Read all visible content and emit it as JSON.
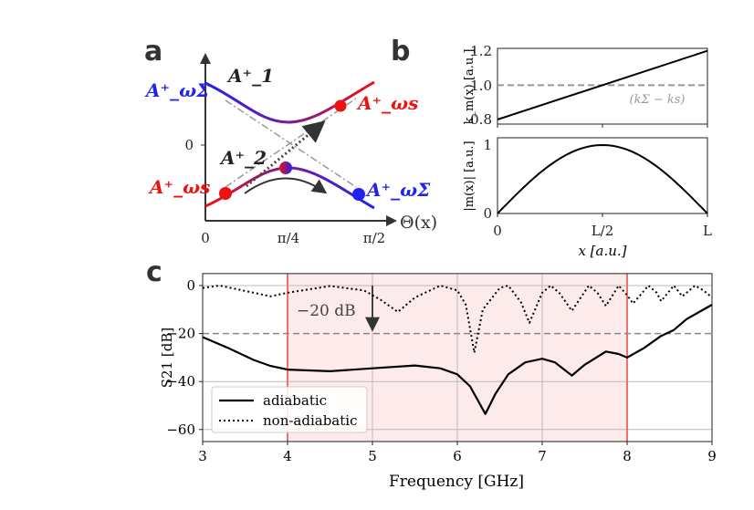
{
  "panel_labels": {
    "a": "a",
    "b": "b",
    "c": "c"
  },
  "chart_data": [
    {
      "type": "diagram-line",
      "panel": "a",
      "xlabel": "Θ(x)",
      "xticks": [
        "0",
        "π/4",
        "π/2"
      ],
      "yticks": [
        "0"
      ],
      "labels": {
        "upper_left": "A⁺_ωΣ",
        "upper_right": "A⁺_ωs",
        "lower_left": "A⁺_ωs",
        "lower_right": "A⁺_ωΣ",
        "branch1": "A⁺_1",
        "branch2": "A⁺_2"
      },
      "colors": {
        "red": "#ee1111",
        "blue": "#2222ee",
        "gray": "#999999",
        "arrow": "#333333"
      }
    },
    {
      "type": "line",
      "panel": "b-top",
      "ylabel": "k_m(x) [a.u.]",
      "yticks": [
        "0.8",
        "1.0",
        "1.2"
      ],
      "ylim": [
        0.79,
        1.21
      ],
      "series": [
        {
          "x": [
            0,
            1
          ],
          "values": [
            0.8,
            1.2
          ]
        }
      ],
      "reference": {
        "value": 1.0,
        "label": "(kΣ − ks)"
      }
    },
    {
      "type": "line",
      "panel": "b-bottom",
      "ylabel": "|m(x)| [a.u.]",
      "xlabel": "x  [a.u.]",
      "yticks": [
        "0",
        "1"
      ],
      "xticks": [
        "0",
        "L/2",
        "L"
      ],
      "ylim": [
        0,
        1.1
      ],
      "series": [
        {
          "shape": "sin(πx/L)",
          "peak": 1
        }
      ]
    },
    {
      "type": "line",
      "panel": "c",
      "xlabel": "Frequency [GHz]",
      "ylabel": "S21 [dB]",
      "xlim": [
        3,
        9
      ],
      "ylim": [
        -65,
        5
      ],
      "xticks": [
        "3",
        "4",
        "5",
        "6",
        "7",
        "8",
        "9"
      ],
      "yticks": [
        "0",
        "-20",
        "-40",
        "-60"
      ],
      "grid": true,
      "band": [
        4,
        8
      ],
      "band_color": "#fdeaea",
      "band_edge_color": "#f07070",
      "threshold": -20,
      "annotation": "−20 dB",
      "legend": "lower-left",
      "series": [
        {
          "name": "adiabatic",
          "style": "solid",
          "x": [
            3,
            3.3,
            3.6,
            3.8,
            4,
            4.5,
            5,
            5.5,
            5.8,
            6,
            6.15,
            6.33,
            6.45,
            6.6,
            6.8,
            7,
            7.15,
            7.35,
            7.5,
            7.75,
            7.9,
            8,
            8.2,
            8.4,
            8.55,
            8.7,
            9
          ],
          "values": [
            -21.5,
            -26,
            -31,
            -33.5,
            -35,
            -35.7,
            -34.5,
            -33.3,
            -34.5,
            -37,
            -42,
            -53.5,
            -45,
            -37,
            -32,
            -30.5,
            -32,
            -37.5,
            -33,
            -27.5,
            -28.5,
            -30,
            -26,
            -21,
            -18.5,
            -14,
            -8
          ]
        },
        {
          "name": "non-adiabatic",
          "style": "dotted",
          "x": [
            3,
            3.2,
            3.4,
            3.8,
            4,
            4.5,
            4.9,
            5.1,
            5.3,
            5.5,
            5.8,
            6,
            6.1,
            6.2,
            6.3,
            6.5,
            6.6,
            6.75,
            6.85,
            7,
            7.1,
            7.2,
            7.35,
            7.55,
            7.65,
            7.75,
            7.9,
            8,
            8.07,
            8.25,
            8.35,
            8.4,
            8.55,
            8.65,
            8.8,
            8.9,
            9
          ],
          "values": [
            -1,
            0,
            -1.5,
            -4.5,
            -3,
            -0.2,
            -2,
            -6,
            -11,
            -5,
            0,
            -2,
            -8,
            -28,
            -10,
            -1,
            0,
            -7,
            -15.5,
            -3,
            0,
            -3,
            -10.5,
            0,
            -3,
            -8.5,
            0,
            -4,
            -7.5,
            0,
            -3,
            -6.5,
            0,
            -4.5,
            0,
            -2,
            -5
          ]
        }
      ]
    }
  ]
}
